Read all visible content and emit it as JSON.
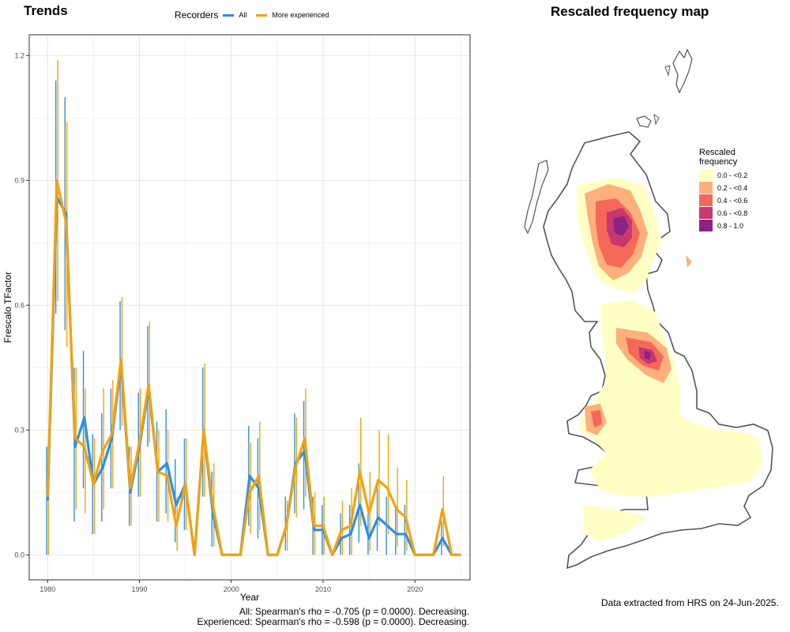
{
  "left_title": "Trends",
  "right_title": "Rescaled frequency map",
  "legend": {
    "title": "Recorders",
    "items": [
      {
        "label": "All",
        "color": "#2e8fe6"
      },
      {
        "label": "More experienced",
        "color": "#f4a20c"
      }
    ]
  },
  "chart_data": {
    "type": "line",
    "xlabel": "Year",
    "ylabel": "Frescalo TFactor",
    "xlim": [
      1978,
      2026
    ],
    "ylim": [
      -0.06,
      1.25
    ],
    "xticks": [
      1980,
      1990,
      2000,
      2010,
      2020
    ],
    "yticks": [
      0.0,
      0.3,
      0.6,
      0.9,
      1.2
    ],
    "grid": true,
    "x": [
      1980,
      1981,
      1982,
      1983,
      1984,
      1985,
      1986,
      1987,
      1988,
      1989,
      1990,
      1991,
      1992,
      1993,
      1994,
      1995,
      1996,
      1997,
      1998,
      1999,
      2000,
      2001,
      2002,
      2003,
      2004,
      2005,
      2006,
      2007,
      2008,
      2009,
      2010,
      2011,
      2012,
      2013,
      2014,
      2015,
      2016,
      2017,
      2018,
      2019,
      2020,
      2021,
      2022,
      2023,
      2024,
      2025
    ],
    "series": [
      {
        "name": "All",
        "color": "#2e8fe6",
        "values": [
          0.13,
          0.86,
          0.82,
          0.26,
          0.33,
          0.17,
          0.21,
          0.28,
          0.46,
          0.15,
          0.26,
          0.4,
          0.2,
          0.22,
          0.12,
          0.17,
          0.0,
          0.3,
          0.1,
          0.0,
          0.0,
          0.0,
          0.19,
          0.16,
          0.0,
          0.0,
          0.07,
          0.22,
          0.25,
          0.06,
          0.06,
          0.0,
          0.04,
          0.05,
          0.12,
          0.04,
          0.09,
          0.07,
          0.05,
          0.05,
          0.0,
          0.0,
          0.0,
          0.04,
          0.0,
          0.0
        ],
        "err_low": [
          0.0,
          0.58,
          0.54,
          0.08,
          0.16,
          0.05,
          0.08,
          0.16,
          0.3,
          0.07,
          0.14,
          0.26,
          0.08,
          0.1,
          0.03,
          0.06,
          0.0,
          0.14,
          0.02,
          0.0,
          0.0,
          0.0,
          0.07,
          0.04,
          0.0,
          0.0,
          0.01,
          0.1,
          0.11,
          0.0,
          0.0,
          0.0,
          0.0,
          0.0,
          0.03,
          0.0,
          0.01,
          0.0,
          0.0,
          0.0,
          0.0,
          0.0,
          0.0,
          0.0,
          0.0,
          0.0
        ],
        "err_high": [
          0.26,
          1.14,
          1.1,
          0.45,
          0.49,
          0.29,
          0.34,
          0.4,
          0.61,
          0.26,
          0.39,
          0.55,
          0.32,
          0.35,
          0.23,
          0.28,
          0.0,
          0.45,
          0.2,
          0.0,
          0.0,
          0.0,
          0.31,
          0.28,
          0.0,
          0.0,
          0.14,
          0.34,
          0.37,
          0.14,
          0.12,
          0.0,
          0.1,
          0.12,
          0.22,
          0.1,
          0.18,
          0.14,
          0.12,
          0.12,
          0.0,
          0.0,
          0.0,
          0.08,
          0.0,
          0.0
        ]
      },
      {
        "name": "More experienced",
        "color": "#f4a20c",
        "values": [
          0.14,
          0.9,
          0.8,
          0.28,
          0.26,
          0.17,
          0.25,
          0.29,
          0.47,
          0.16,
          0.27,
          0.41,
          0.2,
          0.19,
          0.07,
          0.17,
          0.0,
          0.3,
          0.12,
          0.0,
          0.0,
          0.0,
          0.15,
          0.19,
          0.0,
          0.0,
          0.07,
          0.21,
          0.28,
          0.07,
          0.07,
          0.0,
          0.06,
          0.07,
          0.2,
          0.1,
          0.18,
          0.16,
          0.11,
          0.09,
          0.0,
          0.0,
          0.0,
          0.11,
          0.0,
          0.0
        ],
        "err_low": [
          0.0,
          0.61,
          0.5,
          0.11,
          0.1,
          0.05,
          0.11,
          0.16,
          0.31,
          0.07,
          0.14,
          0.27,
          0.08,
          0.08,
          0.01,
          0.06,
          0.0,
          0.14,
          0.02,
          0.0,
          0.0,
          0.0,
          0.05,
          0.06,
          0.0,
          0.0,
          0.01,
          0.09,
          0.14,
          0.0,
          0.0,
          0.0,
          0.0,
          0.0,
          0.07,
          0.01,
          0.07,
          0.05,
          0.02,
          0.01,
          0.0,
          0.0,
          0.0,
          0.02,
          0.0,
          0.0
        ],
        "err_high": [
          0.26,
          1.19,
          1.04,
          0.45,
          0.4,
          0.28,
          0.4,
          0.42,
          0.62,
          0.26,
          0.4,
          0.56,
          0.3,
          0.3,
          0.14,
          0.28,
          0.0,
          0.46,
          0.22,
          0.0,
          0.0,
          0.0,
          0.27,
          0.32,
          0.0,
          0.0,
          0.13,
          0.33,
          0.4,
          0.15,
          0.14,
          0.0,
          0.13,
          0.16,
          0.33,
          0.2,
          0.3,
          0.29,
          0.21,
          0.18,
          0.0,
          0.0,
          0.0,
          0.19,
          0.0,
          0.0
        ]
      }
    ]
  },
  "stats": [
    "All: Spearman's rho = -0.705 (p = 0.0000). Decreasing.",
    "Experienced: Spearman's rho = -0.598 (p = 0.0000). Decreasing."
  ],
  "map": {
    "legend_title_line1": "Rescaled",
    "legend_title_line2": "frequency",
    "legend_items": [
      {
        "label": "0.0 - <0.2",
        "color": "#ffffc4"
      },
      {
        "label": "0.2 - <0.4",
        "color": "#fdb07c"
      },
      {
        "label": "0.4 - <0.6",
        "color": "#f4685a"
      },
      {
        "label": "0.6 - <0.8",
        "color": "#c7386f"
      },
      {
        "label": "0.8 - 1.0",
        "color": "#8c2385"
      }
    ],
    "outline_color": "#555555"
  },
  "footer_note": "Data extracted from HRS on 24-Jun-2025."
}
